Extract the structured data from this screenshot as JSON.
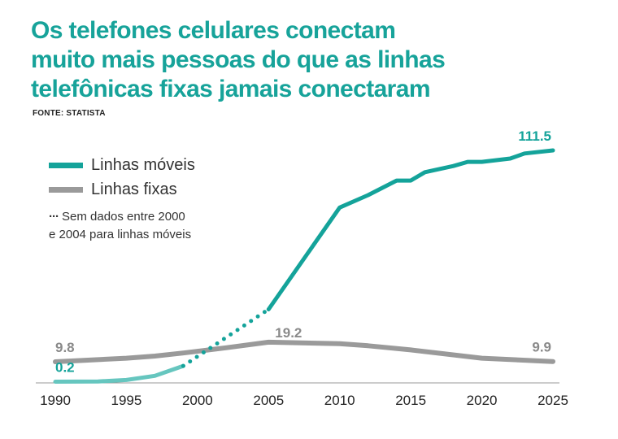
{
  "title_lines": [
    "Os telefones celulares conectam",
    "muito mais pessoas do que as linhas",
    "telefônicas fixas jamais conectaram"
  ],
  "source": "FONTE: STATISTA",
  "chart_data": {
    "type": "line",
    "xlabel": "",
    "ylabel": "",
    "xlim": [
      1990,
      2025
    ],
    "ylim": [
      0,
      115
    ],
    "grid": false,
    "legend_position": "top-left",
    "x_ticks": [
      "1990",
      "1995",
      "2000",
      "2005",
      "2010",
      "2015",
      "2020",
      "2025"
    ],
    "series": [
      {
        "name": "Linhas móveis",
        "color": "#14a39a",
        "early_color": "#66c6bf",
        "no_data_range": [
          2000,
          2004
        ],
        "x": [
          1990,
          1993,
          1995,
          1997,
          1999,
          2005,
          2010,
          2012,
          2014,
          2015,
          2016,
          2018,
          2019,
          2020,
          2022,
          2023,
          2025
        ],
        "y": [
          0.2,
          0.3,
          1,
          3,
          7.8,
          35,
          84,
          90,
          97,
          97,
          101,
          104,
          106,
          106,
          107.6,
          110,
          111.5
        ]
      },
      {
        "name": "Linhas fixas",
        "color": "#9a9a9a",
        "x": [
          1990,
          1995,
          1997,
          1999,
          2002,
          2005,
          2010,
          2012,
          2015,
          2020,
          2025
        ],
        "y": [
          9.8,
          11.5,
          12.5,
          14,
          16.5,
          19.2,
          18.5,
          17.5,
          15.5,
          11.5,
          9.9
        ]
      }
    ],
    "annotations": [
      {
        "text": "111.5",
        "x": 2025,
        "y": 111.5,
        "series": "Linhas móveis"
      },
      {
        "text": "0.2",
        "x": 1990,
        "y": 0.2,
        "series": "Linhas móveis"
      },
      {
        "text": "9.8",
        "x": 1990,
        "y": 9.8,
        "series": "Linhas fixas"
      },
      {
        "text": "19.2",
        "x": 2005,
        "y": 19.2,
        "series": "Linhas fixas"
      },
      {
        "text": "9.9",
        "x": 2025,
        "y": 9.9,
        "series": "Linhas fixas"
      }
    ],
    "note": [
      "Sem dados entre 2000",
      "e 2004 para linhas móveis"
    ]
  }
}
